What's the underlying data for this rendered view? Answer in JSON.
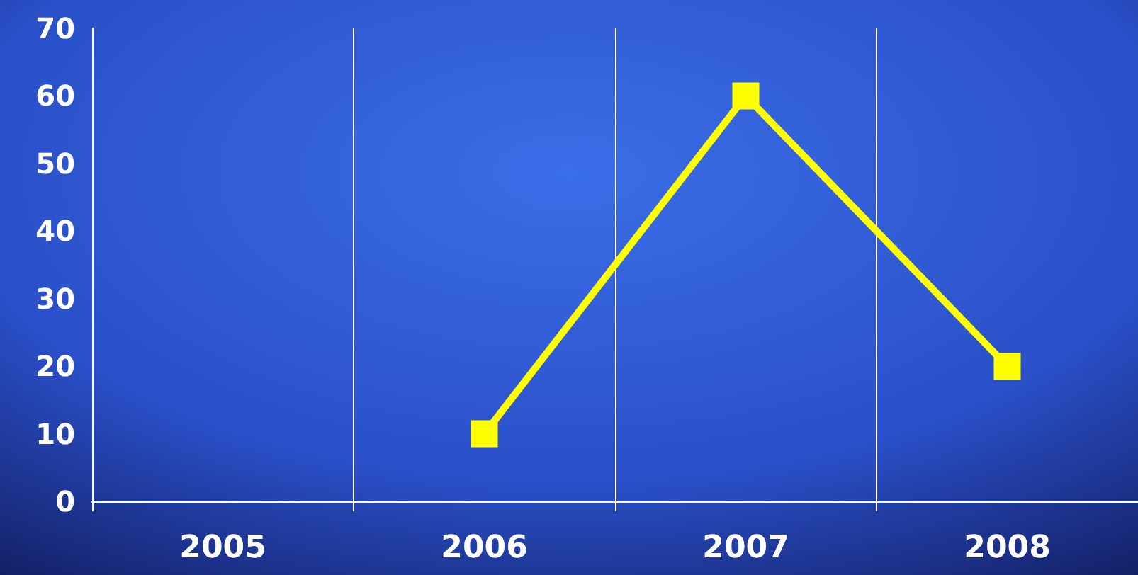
{
  "chart_data": {
    "type": "line",
    "categories": [
      "2005",
      "2006",
      "2007",
      "2008"
    ],
    "series": [
      {
        "color": "#ffff00",
        "values": [
          null,
          10,
          60,
          20
        ]
      }
    ],
    "ylim": [
      0,
      70
    ],
    "yticks": [
      0,
      10,
      20,
      30,
      40,
      50,
      60,
      70
    ],
    "grid": "x",
    "marker": "square",
    "line_style": "solid"
  }
}
